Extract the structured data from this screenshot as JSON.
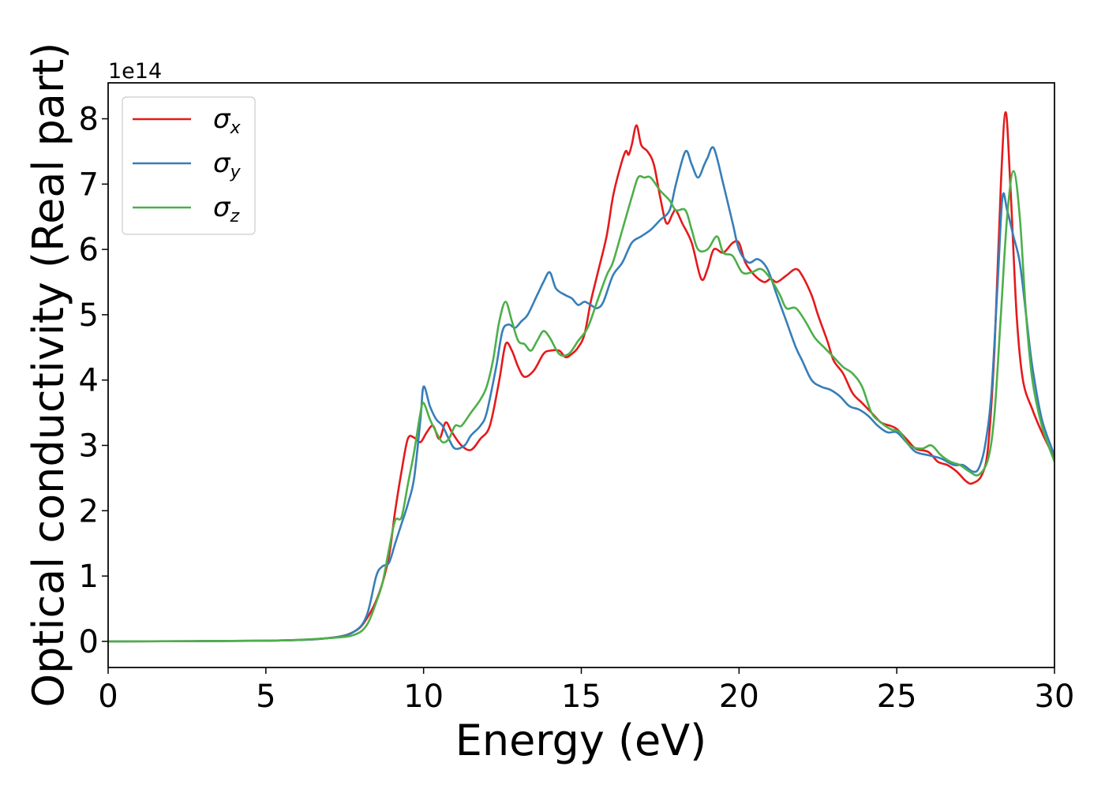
{
  "chart_data": {
    "type": "line",
    "title": "",
    "xlabel": "Energy (eV)",
    "ylabel": "Optical conductivity (Real part)",
    "y_offset_text": "1e14",
    "y_scale_factor": 100000000000000.0,
    "xlim": [
      0,
      30
    ],
    "ylim": [
      -0.4,
      8.55
    ],
    "xticks": [
      0,
      5,
      10,
      15,
      20,
      25,
      30
    ],
    "yticks": [
      0,
      1,
      2,
      3,
      4,
      5,
      6,
      7,
      8
    ],
    "grid": false,
    "legend_position": "top-left",
    "legend": [
      {
        "symbol": "σ",
        "subscript": "x"
      },
      {
        "symbol": "σ",
        "subscript": "y"
      },
      {
        "symbol": "σ",
        "subscript": "z"
      }
    ],
    "series": [
      {
        "color": "#e41a1c",
        "points": [
          [
            0,
            0
          ],
          [
            5,
            0.01
          ],
          [
            7,
            0.05
          ],
          [
            7.8,
            0.15
          ],
          [
            8.2,
            0.35
          ],
          [
            8.6,
            0.75
          ],
          [
            8.9,
            1.3
          ],
          [
            9.1,
            2.0
          ],
          [
            9.3,
            2.6
          ],
          [
            9.5,
            3.1
          ],
          [
            9.7,
            3.12
          ],
          [
            9.9,
            3.05
          ],
          [
            10.1,
            3.2
          ],
          [
            10.3,
            3.3
          ],
          [
            10.5,
            3.1
          ],
          [
            10.7,
            3.35
          ],
          [
            10.9,
            3.2
          ],
          [
            11.2,
            3.0
          ],
          [
            11.5,
            2.93
          ],
          [
            11.8,
            3.1
          ],
          [
            12.1,
            3.3
          ],
          [
            12.4,
            4.0
          ],
          [
            12.6,
            4.55
          ],
          [
            12.8,
            4.45
          ],
          [
            13.0,
            4.2
          ],
          [
            13.2,
            4.05
          ],
          [
            13.5,
            4.15
          ],
          [
            13.8,
            4.4
          ],
          [
            14.0,
            4.45
          ],
          [
            14.3,
            4.45
          ],
          [
            14.5,
            4.35
          ],
          [
            14.7,
            4.4
          ],
          [
            14.9,
            4.5
          ],
          [
            15.1,
            4.7
          ],
          [
            15.3,
            5.2
          ],
          [
            15.5,
            5.6
          ],
          [
            15.8,
            6.2
          ],
          [
            16.0,
            6.8
          ],
          [
            16.2,
            7.2
          ],
          [
            16.4,
            7.5
          ],
          [
            16.5,
            7.45
          ],
          [
            16.6,
            7.6
          ],
          [
            16.75,
            7.9
          ],
          [
            16.9,
            7.6
          ],
          [
            17.1,
            7.5
          ],
          [
            17.3,
            7.3
          ],
          [
            17.5,
            6.8
          ],
          [
            17.7,
            6.4
          ],
          [
            17.9,
            6.55
          ],
          [
            18.0,
            6.6
          ],
          [
            18.2,
            6.4
          ],
          [
            18.5,
            6.1
          ],
          [
            18.8,
            5.55
          ],
          [
            19.0,
            5.7
          ],
          [
            19.2,
            6.0
          ],
          [
            19.5,
            5.95
          ],
          [
            19.8,
            6.1
          ],
          [
            20.0,
            6.1
          ],
          [
            20.2,
            5.8
          ],
          [
            20.5,
            5.6
          ],
          [
            20.8,
            5.5
          ],
          [
            21.0,
            5.55
          ],
          [
            21.2,
            5.5
          ],
          [
            21.5,
            5.6
          ],
          [
            21.8,
            5.7
          ],
          [
            22.0,
            5.6
          ],
          [
            22.3,
            5.3
          ],
          [
            22.5,
            5.0
          ],
          [
            22.8,
            4.6
          ],
          [
            23.0,
            4.3
          ],
          [
            23.3,
            4.1
          ],
          [
            23.6,
            3.8
          ],
          [
            23.9,
            3.65
          ],
          [
            24.2,
            3.5
          ],
          [
            24.5,
            3.35
          ],
          [
            24.8,
            3.3
          ],
          [
            25.0,
            3.25
          ],
          [
            25.3,
            3.1
          ],
          [
            25.6,
            2.95
          ],
          [
            26.0,
            2.9
          ],
          [
            26.3,
            2.75
          ],
          [
            26.6,
            2.7
          ],
          [
            26.9,
            2.6
          ],
          [
            27.2,
            2.45
          ],
          [
            27.4,
            2.42
          ],
          [
            27.7,
            2.55
          ],
          [
            27.9,
            3.0
          ],
          [
            28.1,
            4.5
          ],
          [
            28.3,
            7.0
          ],
          [
            28.45,
            8.1
          ],
          [
            28.6,
            7.0
          ],
          [
            28.8,
            5.0
          ],
          [
            29.0,
            4.0
          ],
          [
            29.3,
            3.55
          ],
          [
            29.6,
            3.2
          ],
          [
            30.0,
            2.8
          ]
        ]
      },
      {
        "color": "#377eb8",
        "points": [
          [
            0,
            0
          ],
          [
            5,
            0.01
          ],
          [
            7,
            0.05
          ],
          [
            7.8,
            0.15
          ],
          [
            8.2,
            0.4
          ],
          [
            8.5,
            1.0
          ],
          [
            8.7,
            1.15
          ],
          [
            8.9,
            1.2
          ],
          [
            9.1,
            1.5
          ],
          [
            9.3,
            1.8
          ],
          [
            9.5,
            2.1
          ],
          [
            9.7,
            2.5
          ],
          [
            9.9,
            3.4
          ],
          [
            10.0,
            3.9
          ],
          [
            10.2,
            3.6
          ],
          [
            10.4,
            3.4
          ],
          [
            10.6,
            3.3
          ],
          [
            10.8,
            3.1
          ],
          [
            11.0,
            2.95
          ],
          [
            11.3,
            3.0
          ],
          [
            11.5,
            3.15
          ],
          [
            11.8,
            3.3
          ],
          [
            12.0,
            3.5
          ],
          [
            12.3,
            4.2
          ],
          [
            12.5,
            4.75
          ],
          [
            12.7,
            4.85
          ],
          [
            12.9,
            4.8
          ],
          [
            13.1,
            4.9
          ],
          [
            13.3,
            5.0
          ],
          [
            13.6,
            5.3
          ],
          [
            13.8,
            5.5
          ],
          [
            14.0,
            5.65
          ],
          [
            14.2,
            5.4
          ],
          [
            14.5,
            5.3
          ],
          [
            14.7,
            5.25
          ],
          [
            14.9,
            5.15
          ],
          [
            15.1,
            5.2
          ],
          [
            15.3,
            5.15
          ],
          [
            15.5,
            5.1
          ],
          [
            15.7,
            5.2
          ],
          [
            16.0,
            5.6
          ],
          [
            16.3,
            5.8
          ],
          [
            16.6,
            6.1
          ],
          [
            16.9,
            6.2
          ],
          [
            17.2,
            6.3
          ],
          [
            17.5,
            6.45
          ],
          [
            17.8,
            6.6
          ],
          [
            18.0,
            7.0
          ],
          [
            18.3,
            7.5
          ],
          [
            18.5,
            7.3
          ],
          [
            18.7,
            7.1
          ],
          [
            18.9,
            7.3
          ],
          [
            19.0,
            7.4
          ],
          [
            19.2,
            7.55
          ],
          [
            19.5,
            7.0
          ],
          [
            19.8,
            6.4
          ],
          [
            20.0,
            6.0
          ],
          [
            20.3,
            5.8
          ],
          [
            20.6,
            5.85
          ],
          [
            20.9,
            5.7
          ],
          [
            21.2,
            5.3
          ],
          [
            21.5,
            4.9
          ],
          [
            21.8,
            4.5
          ],
          [
            22.0,
            4.3
          ],
          [
            22.3,
            4.0
          ],
          [
            22.6,
            3.9
          ],
          [
            22.9,
            3.85
          ],
          [
            23.2,
            3.75
          ],
          [
            23.5,
            3.6
          ],
          [
            23.8,
            3.55
          ],
          [
            24.1,
            3.45
          ],
          [
            24.4,
            3.3
          ],
          [
            24.7,
            3.2
          ],
          [
            25.0,
            3.2
          ],
          [
            25.3,
            3.05
          ],
          [
            25.6,
            2.9
          ],
          [
            26.0,
            2.85
          ],
          [
            26.4,
            2.8
          ],
          [
            26.8,
            2.7
          ],
          [
            27.1,
            2.7
          ],
          [
            27.4,
            2.6
          ],
          [
            27.6,
            2.65
          ],
          [
            27.8,
            3.0
          ],
          [
            28.0,
            3.8
          ],
          [
            28.2,
            5.5
          ],
          [
            28.35,
            6.8
          ],
          [
            28.5,
            6.6
          ],
          [
            28.7,
            6.2
          ],
          [
            28.9,
            5.8
          ],
          [
            29.1,
            5.0
          ],
          [
            29.3,
            4.2
          ],
          [
            29.6,
            3.4
          ],
          [
            30.0,
            2.85
          ]
        ]
      },
      {
        "color": "#4daf4a",
        "points": [
          [
            0,
            0
          ],
          [
            5,
            0.01
          ],
          [
            7,
            0.05
          ],
          [
            7.8,
            0.1
          ],
          [
            8.2,
            0.25
          ],
          [
            8.5,
            0.6
          ],
          [
            8.7,
            0.9
          ],
          [
            8.9,
            1.4
          ],
          [
            9.1,
            1.85
          ],
          [
            9.3,
            1.9
          ],
          [
            9.5,
            2.4
          ],
          [
            9.7,
            2.9
          ],
          [
            9.9,
            3.5
          ],
          [
            10.0,
            3.65
          ],
          [
            10.2,
            3.4
          ],
          [
            10.4,
            3.2
          ],
          [
            10.6,
            3.05
          ],
          [
            10.8,
            3.1
          ],
          [
            11.0,
            3.3
          ],
          [
            11.2,
            3.3
          ],
          [
            11.5,
            3.5
          ],
          [
            11.8,
            3.7
          ],
          [
            12.0,
            3.9
          ],
          [
            12.2,
            4.3
          ],
          [
            12.4,
            4.9
          ],
          [
            12.6,
            5.2
          ],
          [
            12.8,
            4.9
          ],
          [
            13.0,
            4.6
          ],
          [
            13.2,
            4.55
          ],
          [
            13.4,
            4.45
          ],
          [
            13.6,
            4.6
          ],
          [
            13.8,
            4.75
          ],
          [
            14.0,
            4.65
          ],
          [
            14.3,
            4.4
          ],
          [
            14.6,
            4.4
          ],
          [
            14.9,
            4.6
          ],
          [
            15.2,
            4.8
          ],
          [
            15.5,
            5.2
          ],
          [
            15.8,
            5.6
          ],
          [
            16.0,
            5.8
          ],
          [
            16.3,
            6.3
          ],
          [
            16.6,
            6.8
          ],
          [
            16.8,
            7.1
          ],
          [
            17.0,
            7.1
          ],
          [
            17.2,
            7.1
          ],
          [
            17.5,
            6.9
          ],
          [
            17.8,
            6.75
          ],
          [
            18.0,
            6.6
          ],
          [
            18.3,
            6.6
          ],
          [
            18.5,
            6.3
          ],
          [
            18.7,
            6.0
          ],
          [
            19.0,
            6.0
          ],
          [
            19.3,
            6.2
          ],
          [
            19.5,
            5.95
          ],
          [
            19.8,
            5.9
          ],
          [
            20.1,
            5.65
          ],
          [
            20.4,
            5.65
          ],
          [
            20.7,
            5.7
          ],
          [
            21.0,
            5.55
          ],
          [
            21.3,
            5.3
          ],
          [
            21.5,
            5.1
          ],
          [
            21.8,
            5.1
          ],
          [
            22.1,
            4.9
          ],
          [
            22.4,
            4.65
          ],
          [
            22.7,
            4.5
          ],
          [
            23.0,
            4.35
          ],
          [
            23.3,
            4.2
          ],
          [
            23.6,
            4.1
          ],
          [
            23.9,
            3.9
          ],
          [
            24.2,
            3.5
          ],
          [
            24.5,
            3.35
          ],
          [
            24.8,
            3.25
          ],
          [
            25.1,
            3.2
          ],
          [
            25.4,
            3.0
          ],
          [
            25.8,
            2.95
          ],
          [
            26.1,
            3.0
          ],
          [
            26.4,
            2.85
          ],
          [
            26.7,
            2.75
          ],
          [
            27.0,
            2.7
          ],
          [
            27.3,
            2.6
          ],
          [
            27.6,
            2.55
          ],
          [
            27.9,
            2.8
          ],
          [
            28.1,
            3.5
          ],
          [
            28.3,
            5.0
          ],
          [
            28.5,
            6.5
          ],
          [
            28.7,
            7.2
          ],
          [
            28.9,
            6.5
          ],
          [
            29.1,
            5.0
          ],
          [
            29.3,
            4.0
          ],
          [
            29.6,
            3.3
          ],
          [
            30.0,
            2.75
          ]
        ]
      }
    ]
  }
}
